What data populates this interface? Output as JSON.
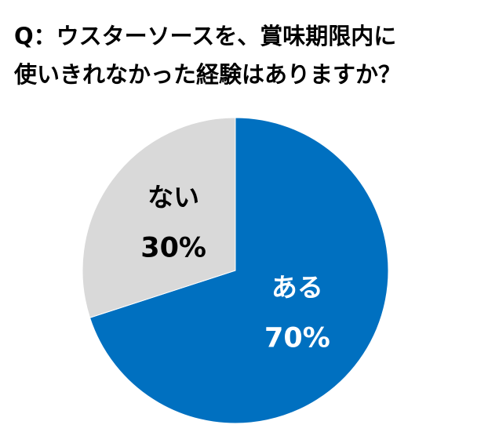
{
  "chart_data": {
    "type": "pie",
    "title": [
      "Q：ウスターソースを、賞味期限内に",
      "使いきれなかった経験はありますか？"
    ],
    "categories": [
      "ある",
      "ない"
    ],
    "values": [
      70,
      30
    ],
    "value_labels": [
      "70%",
      "30%"
    ],
    "colors": [
      "#0070c0",
      "#d9d9d9"
    ],
    "label_colors": [
      "#ffffff",
      "#000000"
    ]
  }
}
